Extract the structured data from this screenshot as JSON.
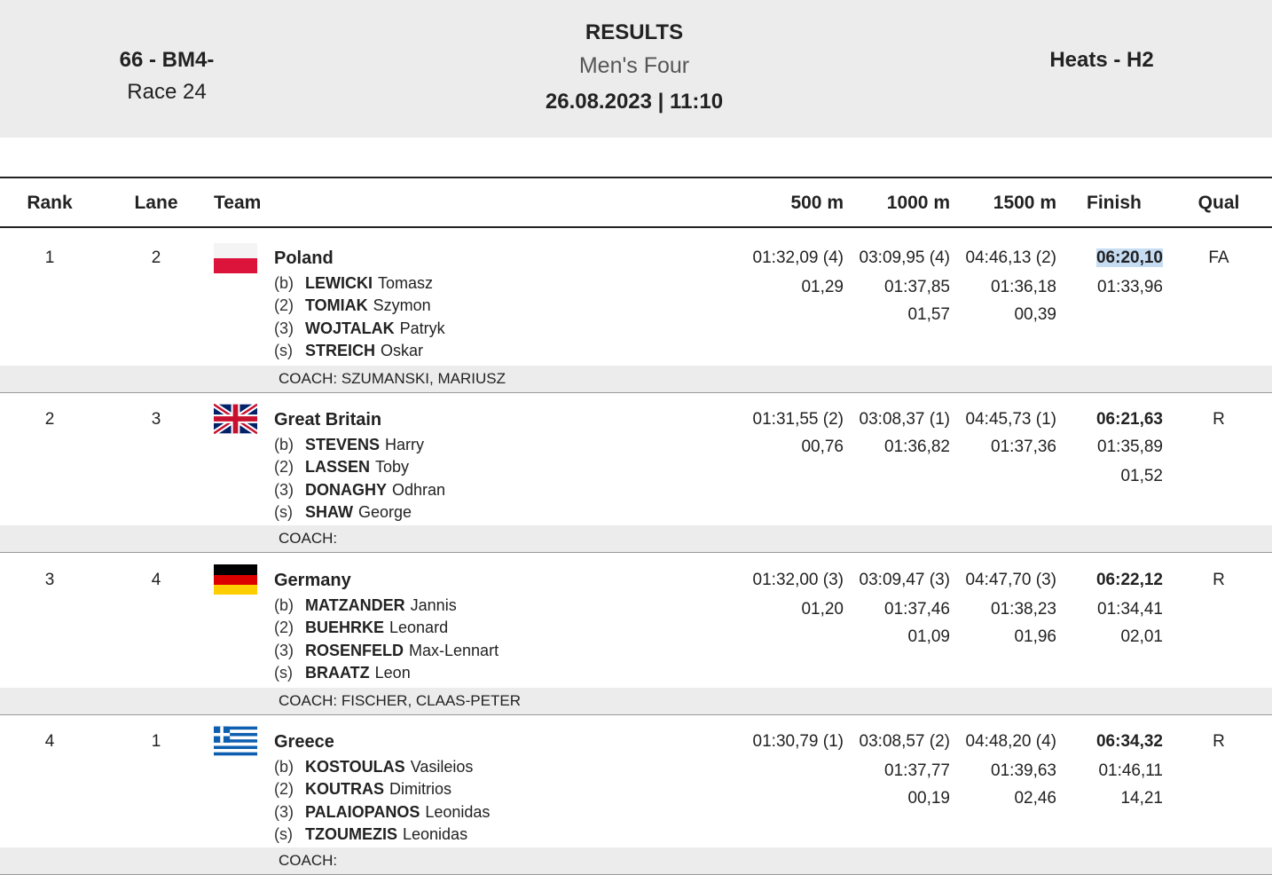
{
  "header": {
    "event_code": "66 - BM4-",
    "race": "Race 24",
    "title": "RESULTS",
    "subtitle": "Men's Four",
    "datetime": "26.08.2023 | 11:10",
    "phase": "Heats - H2"
  },
  "columns": {
    "rank": "Rank",
    "lane": "Lane",
    "team": "Team",
    "m500": "500 m",
    "m1000": "1000 m",
    "m1500": "1500 m",
    "finish": "Finish",
    "qual": "Qual"
  },
  "results": [
    {
      "rank": "1",
      "lane": "2",
      "country": "Poland",
      "flag": "poland-flag-icon",
      "crew": [
        {
          "pos": "(b)",
          "surname": "LEWICKI",
          "first": "Tomasz"
        },
        {
          "pos": "(2)",
          "surname": "TOMIAK",
          "first": "Szymon"
        },
        {
          "pos": "(3)",
          "surname": "WOJTALAK",
          "first": "Patryk"
        },
        {
          "pos": "(s)",
          "surname": "STREICH",
          "first": "Oskar"
        }
      ],
      "m500": [
        "01:32,09 (4)",
        "01,29"
      ],
      "m1000": [
        "03:09,95 (4)",
        "01:37,85",
        "01,57"
      ],
      "m1500": [
        "04:46,13 (2)",
        "01:36,18",
        "00,39"
      ],
      "finish": [
        "06:20,10",
        "01:33,96"
      ],
      "qual": "FA",
      "coach": "COACH: SZUMANSKI, MARIUSZ"
    },
    {
      "rank": "2",
      "lane": "3",
      "country": "Great Britain",
      "flag": "great-britain-flag-icon",
      "crew": [
        {
          "pos": "(b)",
          "surname": "STEVENS",
          "first": "Harry"
        },
        {
          "pos": "(2)",
          "surname": "LASSEN",
          "first": "Toby"
        },
        {
          "pos": "(3)",
          "surname": "DONAGHY",
          "first": "Odhran"
        },
        {
          "pos": "(s)",
          "surname": "SHAW",
          "first": "George"
        }
      ],
      "m500": [
        "01:31,55 (2)",
        "00,76"
      ],
      "m1000": [
        "03:08,37 (1)",
        "01:36,82"
      ],
      "m1500": [
        "04:45,73 (1)",
        "01:37,36"
      ],
      "finish": [
        "06:21,63",
        "01:35,89",
        "01,52"
      ],
      "qual": "R",
      "coach": "COACH:"
    },
    {
      "rank": "3",
      "lane": "4",
      "country": "Germany",
      "flag": "germany-flag-icon",
      "crew": [
        {
          "pos": "(b)",
          "surname": "MATZANDER",
          "first": "Jannis"
        },
        {
          "pos": "(2)",
          "surname": "BUEHRKE",
          "first": "Leonard"
        },
        {
          "pos": "(3)",
          "surname": "ROSENFELD",
          "first": "Max-Lennart"
        },
        {
          "pos": "(s)",
          "surname": "BRAATZ",
          "first": "Leon"
        }
      ],
      "m500": [
        "01:32,00 (3)",
        "01,20"
      ],
      "m1000": [
        "03:09,47 (3)",
        "01:37,46",
        "01,09"
      ],
      "m1500": [
        "04:47,70 (3)",
        "01:38,23",
        "01,96"
      ],
      "finish": [
        "06:22,12",
        "01:34,41",
        "02,01"
      ],
      "qual": "R",
      "coach": "COACH: FISCHER, CLAAS-PETER"
    },
    {
      "rank": "4",
      "lane": "1",
      "country": "Greece",
      "flag": "greece-flag-icon",
      "crew": [
        {
          "pos": "(b)",
          "surname": "KOSTOULAS",
          "first": "Vasileios"
        },
        {
          "pos": "(2)",
          "surname": "KOUTRAS",
          "first": "Dimitrios"
        },
        {
          "pos": "(3)",
          "surname": "PALAIOPANOS",
          "first": "Leonidas"
        },
        {
          "pos": "(s)",
          "surname": "TZOUMEZIS",
          "first": "Leonidas"
        }
      ],
      "m500": [
        "01:30,79 (1)"
      ],
      "m1000": [
        "03:08,57 (2)",
        "01:37,77",
        "00,19"
      ],
      "m1500": [
        "04:48,20 (4)",
        "01:39,63",
        "02,46"
      ],
      "finish": [
        "06:34,32",
        "01:46,11",
        "14,21"
      ],
      "qual": "R",
      "coach": "COACH:"
    }
  ]
}
